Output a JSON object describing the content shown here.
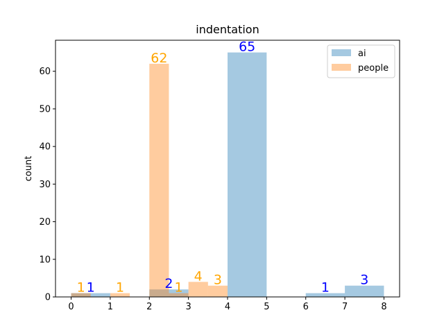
{
  "chart_data": {
    "type": "bar",
    "title": "indentation",
    "xlabel": "",
    "ylabel": "count",
    "xlim": [
      -0.4,
      8.4
    ],
    "ylim": [
      0,
      68.25
    ],
    "xticks": [
      0,
      1,
      2,
      3,
      4,
      5,
      6,
      7,
      8
    ],
    "yticks": [
      0,
      10,
      20,
      30,
      40,
      50,
      60
    ],
    "legend_position": "top-right",
    "series": [
      {
        "name": "ai",
        "color": "#1f77b4",
        "opacity": 0.4,
        "label_color": "#0000ff",
        "bins": [
          {
            "start": 0.0,
            "end": 1.0,
            "value": 1,
            "label": "1"
          },
          {
            "start": 2.0,
            "end": 3.0,
            "value": 2,
            "label": "2"
          },
          {
            "start": 4.0,
            "end": 5.0,
            "value": 65,
            "label": "65"
          },
          {
            "start": 6.0,
            "end": 7.0,
            "value": 1,
            "label": "1"
          },
          {
            "start": 7.0,
            "end": 8.0,
            "value": 3,
            "label": "3"
          }
        ]
      },
      {
        "name": "people",
        "color": "#ff7f0e",
        "opacity": 0.4,
        "label_color": "#ffa500",
        "bins": [
          {
            "start": 0.0,
            "end": 0.5,
            "value": 1,
            "label": "1"
          },
          {
            "start": 1.0,
            "end": 1.5,
            "value": 1,
            "label": "1"
          },
          {
            "start": 2.0,
            "end": 2.5,
            "value": 62,
            "label": "62"
          },
          {
            "start": 2.5,
            "end": 3.0,
            "value": 1,
            "label": "1"
          },
          {
            "start": 3.0,
            "end": 3.5,
            "value": 4,
            "label": "4"
          },
          {
            "start": 3.5,
            "end": 4.0,
            "value": 3,
            "label": "3"
          }
        ]
      }
    ]
  }
}
